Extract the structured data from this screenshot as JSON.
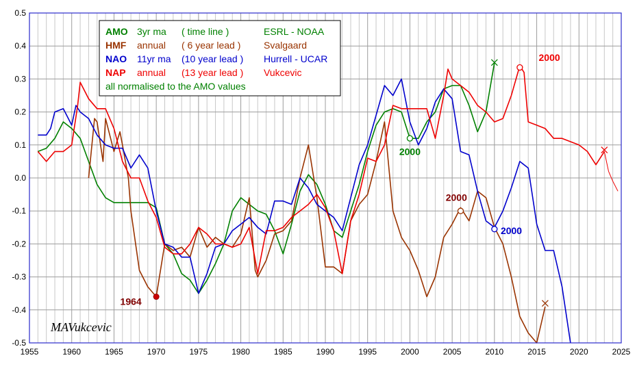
{
  "chart_data": {
    "type": "line",
    "title": "",
    "xlabel": "",
    "ylabel": "",
    "xlim": [
      1955,
      2025
    ],
    "ylim": [
      -0.5,
      0.5
    ],
    "x_ticks": [
      1955,
      1960,
      1965,
      1970,
      1975,
      1980,
      1985,
      1990,
      1995,
      2000,
      2005,
      2010,
      2015,
      2020,
      2025
    ],
    "y_ticks": [
      0.5,
      0.4,
      0.3,
      0.2,
      0.1,
      0.0,
      -0.1,
      -0.2,
      -0.3,
      -0.4,
      -0.5
    ],
    "y_tick_labels": [
      "0.5",
      "0.4",
      "0.3",
      "0.2",
      "0.1",
      "0.0",
      "-0.1",
      "-0.2",
      "-0.3",
      "-0.4",
      "-0.5"
    ],
    "grid": true,
    "legend_position": "top-left",
    "legend": [
      {
        "key": "AMO",
        "c1": "3yr ma",
        "c2": "( time line )",
        "c3": "ESRL - NOAA",
        "color": "#008000"
      },
      {
        "key": "HMF",
        "c1": "annual",
        "c2": "( 6 year lead )",
        "c3": "Svalgaard",
        "color": "#993300"
      },
      {
        "key": "NAO",
        "c1": "11yr ma",
        "c2": "(10 year lead )",
        "c3": "Hurrell - UCAR",
        "color": "#0000cc"
      },
      {
        "key": "NAP",
        "c1": "annual",
        "c2": "(13 year lead )",
        "c3": "Vukcevic",
        "color": "#ee0000"
      }
    ],
    "legend_note": "all normalised to the AMO values",
    "signature": "MAVukcevic",
    "series": [
      {
        "name": "AMO",
        "color": "#008000",
        "x": [
          1956,
          1957,
          1958,
          1959,
          1960,
          1961,
          1962,
          1963,
          1964,
          1965,
          1966,
          1967,
          1968,
          1969,
          1970,
          1971,
          1972,
          1973,
          1974,
          1975,
          1976,
          1977,
          1978,
          1979,
          1980,
          1981,
          1982,
          1983,
          1984,
          1985,
          1986,
          1987,
          1988,
          1989,
          1990,
          1991,
          1992,
          1993,
          1994,
          1995,
          1996,
          1997,
          1998,
          1999,
          2000,
          2001,
          2002,
          2003,
          2004,
          2005,
          2006,
          2007,
          2008,
          2009,
          2010
        ],
        "y": [
          0.08,
          0.09,
          0.12,
          0.17,
          0.15,
          0.12,
          0.05,
          -0.02,
          -0.06,
          -0.075,
          -0.075,
          -0.075,
          -0.075,
          -0.075,
          -0.09,
          -0.2,
          -0.23,
          -0.29,
          -0.31,
          -0.35,
          -0.31,
          -0.26,
          -0.2,
          -0.1,
          -0.06,
          -0.08,
          -0.1,
          -0.11,
          -0.16,
          -0.23,
          -0.14,
          -0.04,
          0.01,
          -0.02,
          -0.08,
          -0.16,
          -0.18,
          -0.1,
          -0.02,
          0.08,
          0.16,
          0.2,
          0.21,
          0.2,
          0.12,
          0.12,
          0.17,
          0.2,
          0.27,
          0.28,
          0.28,
          0.22,
          0.14,
          0.2,
          0.35
        ]
      },
      {
        "name": "HMF",
        "color": "#993300",
        "x": [
          1962,
          1962.7,
          1963,
          1963.7,
          1964,
          1965,
          1965.7,
          1966,
          1966.7,
          1967,
          1968,
          1969,
          1970,
          1971,
          1972,
          1973,
          1974,
          1975,
          1976,
          1977,
          1978,
          1979,
          1980,
          1981,
          1981.7,
          1982,
          1983,
          1984,
          1985,
          1986,
          1987,
          1988,
          1989,
          1990,
          1991,
          1992,
          1993,
          1994,
          1995,
          1996,
          1997,
          1998,
          1999,
          2000,
          2001,
          2002,
          2003,
          2004,
          2005,
          2006,
          2007,
          2008,
          2009,
          2010,
          2011,
          2012,
          2013,
          2014,
          2015,
          2016
        ],
        "y": [
          0.0,
          0.18,
          0.17,
          0.05,
          0.18,
          0.08,
          0.14,
          0.1,
          0.0,
          -0.1,
          -0.28,
          -0.33,
          -0.36,
          -0.2,
          -0.22,
          -0.21,
          -0.24,
          -0.15,
          -0.21,
          -0.18,
          -0.2,
          -0.21,
          -0.17,
          -0.06,
          -0.28,
          -0.3,
          -0.25,
          -0.17,
          -0.16,
          -0.13,
          0.0,
          0.1,
          -0.06,
          -0.27,
          -0.27,
          -0.29,
          -0.13,
          -0.08,
          -0.05,
          0.05,
          0.17,
          -0.1,
          -0.18,
          -0.22,
          -0.28,
          -0.36,
          -0.3,
          -0.18,
          -0.14,
          -0.09,
          -0.13,
          -0.04,
          -0.06,
          -0.15,
          -0.2,
          -0.3,
          -0.42,
          -0.47,
          -0.5,
          -0.39
        ]
      },
      {
        "name": "NAO",
        "color": "#0000cc",
        "x": [
          1956,
          1957,
          1957.5,
          1958,
          1959,
          1960,
          1960.5,
          1961,
          1962,
          1963,
          1964,
          1965,
          1966,
          1967,
          1968,
          1969,
          1970,
          1971,
          1972,
          1973,
          1974,
          1975,
          1976,
          1977,
          1978,
          1979,
          1980,
          1981,
          1982,
          1983,
          1984,
          1985,
          1986,
          1987,
          1988,
          1989,
          1990,
          1991,
          1992,
          1993,
          1994,
          1995,
          1996,
          1997,
          1998,
          1999,
          2000,
          2001,
          2002,
          2003,
          2004,
          2005,
          2006,
          2007,
          2008,
          2009,
          2010,
          2011,
          2012,
          2013,
          2014,
          2015,
          2016,
          2017,
          2018,
          2019
        ],
        "y": [
          0.13,
          0.13,
          0.15,
          0.2,
          0.21,
          0.16,
          0.22,
          0.2,
          0.18,
          0.13,
          0.1,
          0.09,
          0.09,
          0.03,
          0.07,
          0.03,
          -0.1,
          -0.2,
          -0.21,
          -0.24,
          -0.24,
          -0.35,
          -0.29,
          -0.21,
          -0.2,
          -0.16,
          -0.14,
          -0.12,
          -0.15,
          -0.17,
          -0.07,
          -0.07,
          -0.08,
          0.0,
          -0.03,
          -0.08,
          -0.1,
          -0.12,
          -0.16,
          -0.06,
          0.04,
          0.1,
          0.19,
          0.28,
          0.25,
          0.3,
          0.17,
          0.1,
          0.15,
          0.23,
          0.27,
          0.24,
          0.08,
          0.07,
          -0.04,
          -0.13,
          -0.15,
          -0.1,
          -0.03,
          0.05,
          0.03,
          -0.14,
          -0.22,
          -0.22,
          -0.33,
          -0.5
        ]
      },
      {
        "name": "NAP",
        "color": "#ee0000",
        "x": [
          1956,
          1957,
          1958,
          1959,
          1960,
          1960.7,
          1961,
          1962,
          1963,
          1964,
          1965,
          1966,
          1967,
          1968,
          1969,
          1970,
          1971,
          1972,
          1973,
          1974,
          1975,
          1976,
          1977,
          1978,
          1979,
          1980,
          1981,
          1982,
          1983,
          1984,
          1985,
          1986,
          1987,
          1988,
          1989,
          1990,
          1991,
          1992,
          1993,
          1994,
          1995,
          1996,
          1997,
          1998,
          1999,
          2000,
          2001,
          2002,
          2003,
          2004,
          2004.5,
          2005,
          2006,
          2007,
          2008,
          2009,
          2010,
          2011,
          2012,
          2013,
          2013.5,
          2014,
          2015,
          2016,
          2017,
          2018,
          2019,
          2020,
          2021,
          2022,
          2023
        ],
        "y": [
          0.08,
          0.05,
          0.08,
          0.08,
          0.1,
          0.22,
          0.29,
          0.24,
          0.21,
          0.21,
          0.15,
          0.05,
          0.0,
          0.0,
          -0.07,
          -0.12,
          -0.21,
          -0.23,
          -0.23,
          -0.2,
          -0.15,
          -0.17,
          -0.2,
          -0.2,
          -0.21,
          -0.2,
          -0.15,
          -0.29,
          -0.16,
          -0.16,
          -0.15,
          -0.12,
          -0.1,
          -0.08,
          -0.05,
          -0.09,
          -0.16,
          -0.29,
          -0.13,
          -0.05,
          0.06,
          0.05,
          0.1,
          0.22,
          0.21,
          0.21,
          0.21,
          0.21,
          0.12,
          0.25,
          0.33,
          0.3,
          0.28,
          0.26,
          0.22,
          0.2,
          0.17,
          0.18,
          0.25,
          0.34,
          0.32,
          0.17,
          0.16,
          0.15,
          0.12,
          0.12,
          0.11,
          0.1,
          0.08,
          0.04,
          0.08
        ]
      }
    ],
    "tail_segment": {
      "series": "NAP",
      "x": [
        2023,
        2023.5,
        2024,
        2024.6
      ],
      "y": [
        0.08,
        0.02,
        -0.01,
        -0.04
      ]
    },
    "markers": [
      {
        "series": "AMO",
        "shape": "circle",
        "x": 2000,
        "y": 0.12
      },
      {
        "series": "AMO",
        "shape": "cross",
        "x": 2010,
        "y": 0.35
      },
      {
        "series": "HMF",
        "shape": "dot",
        "x": 1970,
        "y": -0.36
      },
      {
        "series": "HMF",
        "shape": "circle",
        "x": 2006,
        "y": -0.1
      },
      {
        "series": "HMF",
        "shape": "cross",
        "x": 2016,
        "y": -0.38
      },
      {
        "series": "NAO",
        "shape": "circle",
        "x": 2010,
        "y": -0.155
      },
      {
        "series": "NAP",
        "shape": "circle",
        "x": 2013,
        "y": 0.335
      },
      {
        "series": "NAP",
        "shape": "cross",
        "x": 2023,
        "y": 0.085
      }
    ],
    "annotations": [
      {
        "text": "2000",
        "series": "AMO",
        "color": "#008000",
        "x": 2000,
        "y": 0.07
      },
      {
        "text": "2000",
        "series": "HMF",
        "color": "#800000",
        "x": 2005.5,
        "y": -0.07
      },
      {
        "text": "2000",
        "series": "NAO",
        "color": "#0000cc",
        "x": 2012,
        "y": -0.17
      },
      {
        "text": "2000",
        "series": "NAP",
        "color": "#ee0000",
        "x": 2016.5,
        "y": 0.355
      },
      {
        "text": "1964",
        "series": "HMF",
        "color": "#800000",
        "x": 1967,
        "y": -0.385
      }
    ]
  }
}
